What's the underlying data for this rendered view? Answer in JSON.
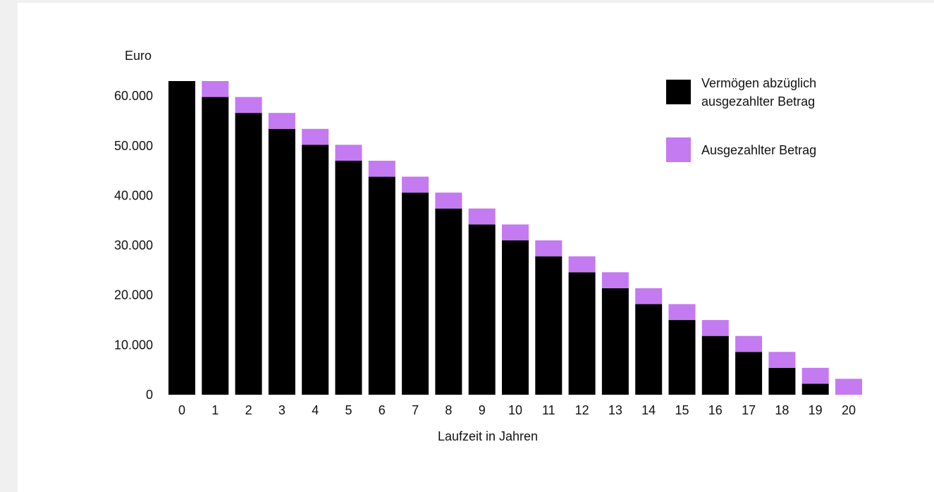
{
  "chart_data": {
    "type": "bar",
    "stacked": true,
    "xlabel": "Laufzeit in Jahren",
    "ylabel": "Euro",
    "ylim": [
      0,
      63000
    ],
    "yticks": [
      0,
      10000,
      20000,
      30000,
      40000,
      50000,
      60000
    ],
    "ytick_labels": [
      "0",
      "10.000",
      "20.000",
      "30.000",
      "40.000",
      "50.000",
      "60.000"
    ],
    "categories": [
      "0",
      "1",
      "2",
      "3",
      "4",
      "5",
      "6",
      "7",
      "8",
      "9",
      "10",
      "11",
      "12",
      "13",
      "14",
      "15",
      "16",
      "17",
      "18",
      "19",
      "20"
    ],
    "series": [
      {
        "name": "Vermögen abzüglich ausgezahlter Betrag",
        "color": "#000000",
        "values": [
          63000,
          59800,
          56600,
          53400,
          50200,
          47000,
          43800,
          40600,
          37400,
          34200,
          31000,
          27800,
          24600,
          21400,
          18200,
          15000,
          11800,
          8600,
          5400,
          2200,
          0
        ]
      },
      {
        "name": "Ausgezahlter Betrag",
        "color": "#c47af0",
        "values": [
          0,
          3200,
          3200,
          3200,
          3200,
          3200,
          3200,
          3200,
          3200,
          3200,
          3200,
          3200,
          3200,
          3200,
          3200,
          3200,
          3200,
          3200,
          3200,
          3200,
          3200
        ]
      }
    ],
    "legend": {
      "placement": "top-right",
      "items": [
        {
          "line1": "Vermögen abzüglich",
          "line2": "ausgezahlter Betrag",
          "color": "#000000"
        },
        {
          "line1": "Ausgezahlter Betrag",
          "line2": "",
          "color": "#c47af0"
        }
      ]
    },
    "grid": false
  }
}
